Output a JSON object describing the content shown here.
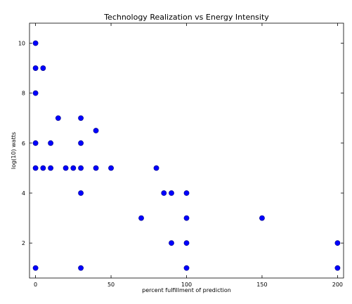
{
  "chart_data": {
    "type": "scatter",
    "title": "Technology Realization vs Energy Intensity",
    "xlabel": "percent fulfillment of prediction",
    "ylabel": "log(10) watts",
    "xlim": [
      -4,
      204
    ],
    "ylim": [
      0.6,
      10.8
    ],
    "xticks": [
      0,
      50,
      100,
      150,
      200
    ],
    "yticks": [
      2,
      4,
      6,
      8,
      10
    ],
    "grid": false,
    "marker_color": "#0000ff",
    "series": [
      {
        "points": [
          [
            0,
            10
          ],
          [
            0,
            9
          ],
          [
            5,
            9
          ],
          [
            0,
            8
          ],
          [
            15,
            7
          ],
          [
            30,
            7
          ],
          [
            40,
            6.5
          ],
          [
            0,
            6
          ],
          [
            10,
            6
          ],
          [
            30,
            6
          ],
          [
            0,
            5
          ],
          [
            5,
            5
          ],
          [
            10,
            5
          ],
          [
            20,
            5
          ],
          [
            25,
            5
          ],
          [
            30,
            5
          ],
          [
            40,
            5
          ],
          [
            50,
            5
          ],
          [
            80,
            5
          ],
          [
            30,
            4
          ],
          [
            85,
            4
          ],
          [
            90,
            4
          ],
          [
            100,
            4
          ],
          [
            70,
            3
          ],
          [
            100,
            3
          ],
          [
            150,
            3
          ],
          [
            90,
            2
          ],
          [
            100,
            2
          ],
          [
            200,
            2
          ],
          [
            0,
            1
          ],
          [
            30,
            1
          ],
          [
            100,
            1
          ],
          [
            200,
            1
          ]
        ]
      }
    ]
  }
}
